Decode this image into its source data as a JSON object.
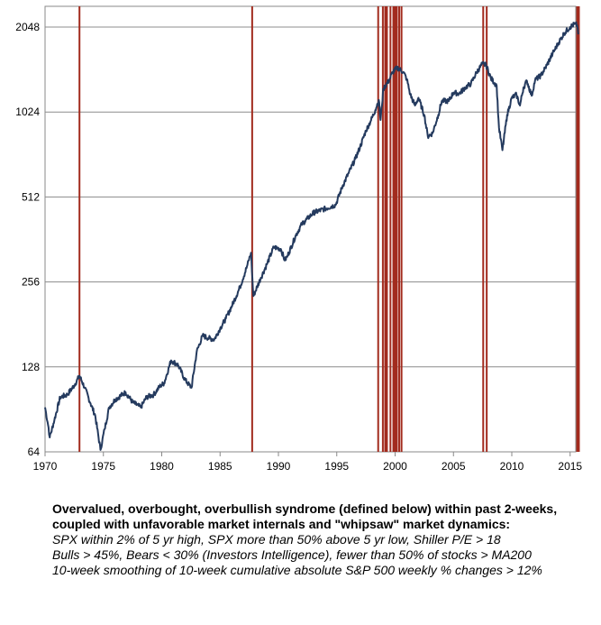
{
  "chart_data": {
    "type": "line",
    "title": "",
    "xlabel": "",
    "ylabel": "",
    "y_scale": "log2",
    "ylim": [
      64,
      2300
    ],
    "xlim": [
      1970,
      2016
    ],
    "y_ticks": [
      64,
      128,
      256,
      512,
      1024,
      2048
    ],
    "x_ticks": [
      1970,
      1975,
      1980,
      1985,
      1990,
      1995,
      2000,
      2005,
      2010,
      2015
    ],
    "grid": true,
    "legend": "none",
    "series": [
      {
        "color": "#243a5e",
        "x": [
          1970.0,
          1970.3,
          1970.4,
          1970.8,
          1971.3,
          1971.9,
          1972.5,
          1972.95,
          1973.4,
          1973.9,
          1974.3,
          1974.75,
          1975.1,
          1975.5,
          1976.0,
          1976.9,
          1977.5,
          1978.2,
          1978.7,
          1979.3,
          1979.9,
          1980.2,
          1980.8,
          1981.4,
          1982.0,
          1982.55,
          1983.0,
          1983.5,
          1984.0,
          1984.5,
          1985.0,
          1985.5,
          1986.0,
          1986.7,
          1987.3,
          1987.65,
          1987.85,
          1988.5,
          1989.0,
          1989.6,
          1990.2,
          1990.55,
          1990.8,
          1991.5,
          1992.0,
          1993.0,
          1994.0,
          1994.9,
          1995.5,
          1996.0,
          1996.6,
          1997.0,
          1997.5,
          1997.9,
          1998.3,
          1998.6,
          1998.75,
          1999.0,
          1999.5,
          1999.8,
          2000.2,
          2000.7,
          2001.0,
          2001.3,
          2001.7,
          2002.0,
          2002.5,
          2002.8,
          2003.2,
          2003.7,
          2004.0,
          2004.6,
          2005.0,
          2005.5,
          2006.0,
          2006.5,
          2007.0,
          2007.5,
          2007.8,
          2008.2,
          2008.7,
          2008.9,
          2009.2,
          2009.6,
          2010.0,
          2010.4,
          2010.7,
          2011.0,
          2011.3,
          2011.7,
          2012.0,
          2012.5,
          2013.0,
          2013.5,
          2014.0,
          2014.5,
          2015.0,
          2015.4,
          2015.6,
          2015.7
        ],
        "values": [
          92,
          78,
          72,
          83,
          100,
          102,
          110,
          119,
          108,
          95,
          86,
          65,
          77,
          92,
          98,
          104,
          96,
          92,
          100,
          102,
          110,
          112,
          135,
          130,
          115,
          108,
          145,
          165,
          162,
          160,
          175,
          190,
          210,
          245,
          290,
          325,
          228,
          265,
          295,
          340,
          335,
          305,
          318,
          375,
          410,
          450,
          465,
          480,
          560,
          620,
          700,
          770,
          880,
          950,
          1040,
          1130,
          960,
          1240,
          1330,
          1420,
          1470,
          1420,
          1340,
          1180,
          1080,
          1150,
          1000,
          840,
          860,
          1000,
          1120,
          1120,
          1200,
          1190,
          1250,
          1290,
          1420,
          1520,
          1500,
          1350,
          1270,
          900,
          750,
          1000,
          1150,
          1180,
          1080,
          1250,
          1320,
          1170,
          1330,
          1380,
          1500,
          1650,
          1800,
          1950,
          2050,
          2100,
          2080,
          1930
        ]
      }
    ],
    "signals": [
      1972.95,
      1987.75,
      1998.55,
      1998.95,
      1999.15,
      1999.3,
      1999.6,
      1999.85,
      2000.0,
      2000.15,
      2000.35,
      2000.55,
      2007.55,
      2007.85,
      2015.6,
      2015.75
    ],
    "signal_color": "#a22b1e"
  },
  "caption": {
    "title": "Overvalued, overbought, overbullish syndrome (defined below) within past 2-weeks, coupled with unfavorable market internals and \"whipsaw\" market dynamics:",
    "conditions": [
      "SPX within 2% of 5 yr high, SPX more than 50% above 5 yr low, Shiller P/E > 18",
      "Bulls > 45%, Bears < 30% (Investors Intelligence), fewer than 50% of stocks > MA200",
      "10-week smoothing of 10-week cumulative absolute S&P 500 weekly % changes > 12%"
    ]
  }
}
